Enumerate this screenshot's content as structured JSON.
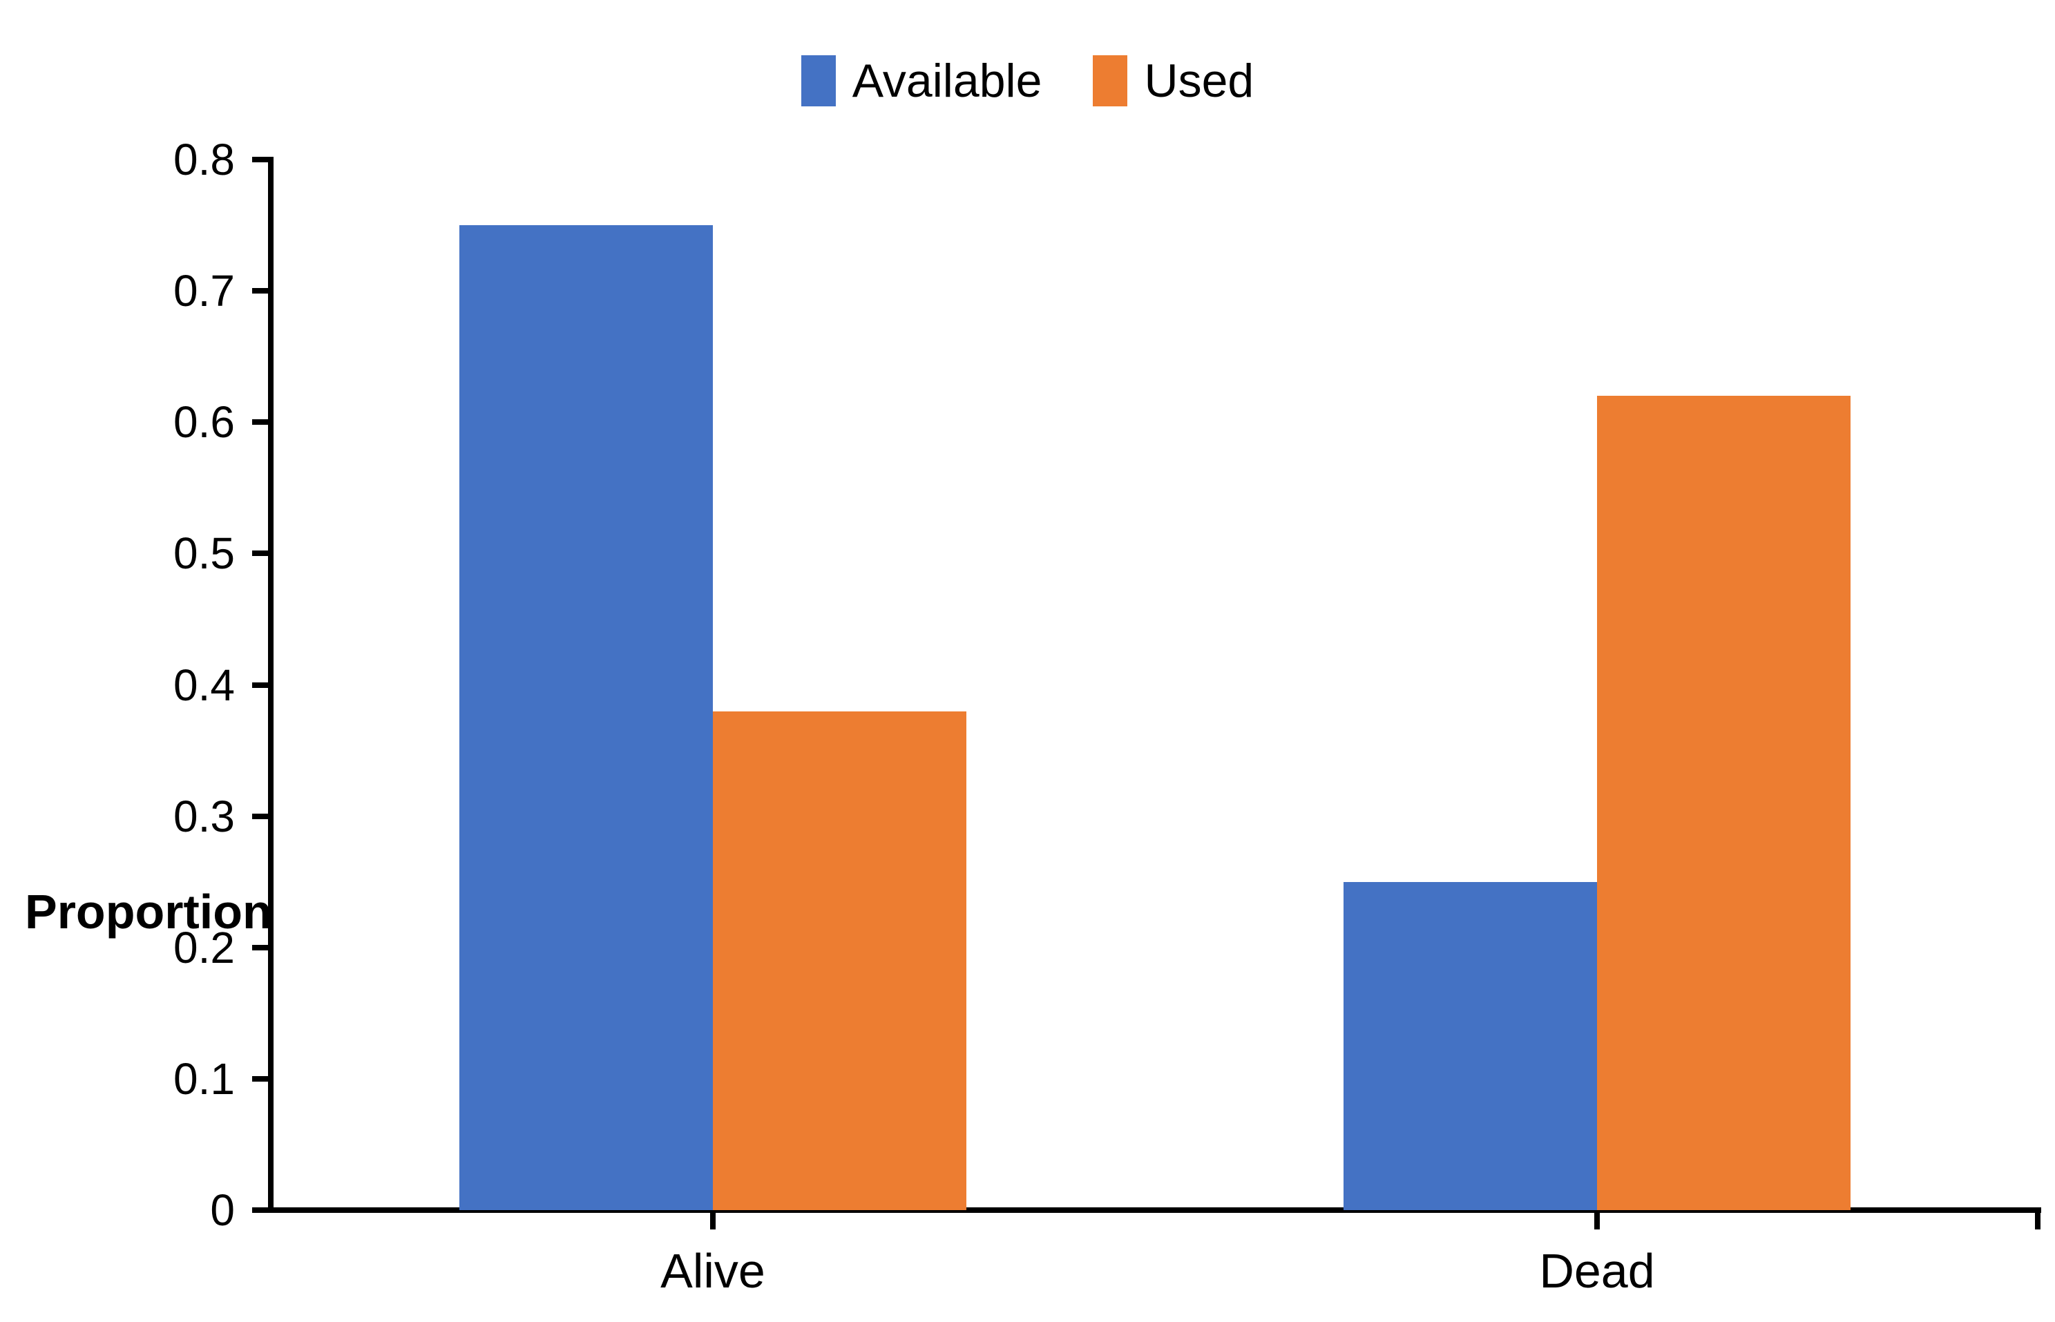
{
  "chart_data": {
    "type": "bar",
    "title": "",
    "categories": [
      "Alive",
      "Dead"
    ],
    "series": [
      {
        "name": "Available",
        "color": "#4472C4",
        "values": [
          0.75,
          0.25
        ]
      },
      {
        "name": "Used",
        "color": "#ED7D31",
        "values": [
          0.38,
          0.62
        ]
      }
    ],
    "xlabel": "",
    "ylabel": "Proportion",
    "ylim": [
      0,
      0.8
    ],
    "ytick_step": 0.1,
    "ytick_labels": [
      "0",
      "0.1",
      "0.2",
      "0.3",
      "0.4",
      "0.5",
      "0.6",
      "0.7",
      "0.8"
    ],
    "grid": false,
    "legend_position": "top",
    "axis_color": "#000000",
    "background_color": "#FFFFFF"
  }
}
